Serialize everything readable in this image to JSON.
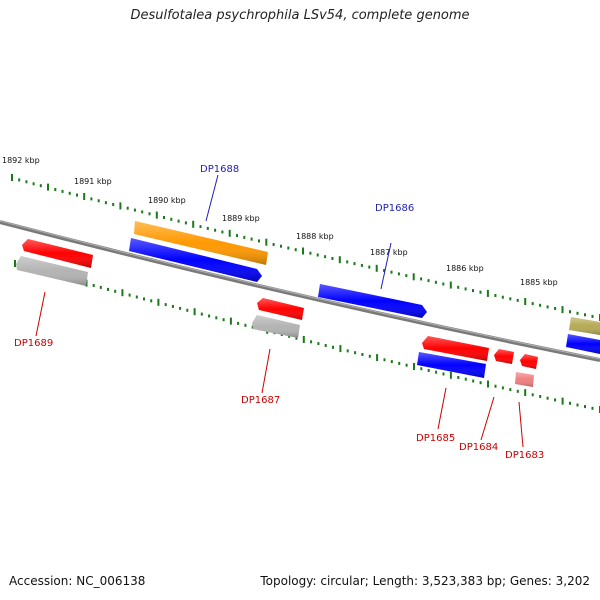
{
  "title": "Desulfotalea psychrophila LSv54, complete genome",
  "accession_text": "Accession: NC_006138",
  "summary_text": "Topology: circular; Length: 3,523,383 bp; Genes: 3,202",
  "ruler": {
    "labels": [
      "1892 kbp",
      "1891 kbp",
      "1890 kbp",
      "1889 kbp",
      "1888 kbp",
      "1887 kbp",
      "1886 kbp",
      "1885 kbp"
    ]
  },
  "genes": [
    {
      "id": "g1688",
      "label": "DP1688",
      "label_color": "#1f1fb8",
      "strand": "+",
      "segments": [
        {
          "color": "#ff9900"
        },
        {
          "color": "#0000ff"
        }
      ]
    },
    {
      "id": "g1689",
      "label": "DP1689",
      "label_color": "#cc0000",
      "strand": "-",
      "segments": [
        {
          "color": "#ff0000"
        },
        {
          "color": "#b3b3b3"
        }
      ]
    },
    {
      "id": "g1687",
      "label": "DP1687",
      "label_color": "#cc0000",
      "strand": "-",
      "segments": [
        {
          "color": "#ff0000"
        },
        {
          "color": "#b3b3b3"
        }
      ]
    },
    {
      "id": "g1686",
      "label": "DP1686",
      "label_color": "#1f1fb8",
      "strand": "+",
      "segments": [
        {
          "color": "#0000ff"
        }
      ]
    },
    {
      "id": "g1685",
      "label": "DP1685",
      "label_color": "#cc0000",
      "strand": "-",
      "segments": [
        {
          "color": "#ff0000"
        },
        {
          "color": "#0000ff"
        }
      ]
    },
    {
      "id": "g1684",
      "label": "DP1684",
      "label_color": "#cc0000",
      "strand": "-",
      "segments": [
        {
          "color": "#ff0000"
        }
      ]
    },
    {
      "id": "g1683",
      "label": "DP1683",
      "label_color": "#cc0000",
      "strand": "-",
      "segments": [
        {
          "color": "#ff0000"
        },
        {
          "color": "#f08080"
        }
      ]
    },
    {
      "id": "gedge",
      "label": "",
      "strand": "+",
      "segments": [
        {
          "color": "#b5aa55"
        },
        {
          "color": "#0000ff"
        }
      ]
    }
  ],
  "colors": {
    "backbone": "#7a7a7a",
    "ruler_ticks": "#1a7a1a"
  }
}
